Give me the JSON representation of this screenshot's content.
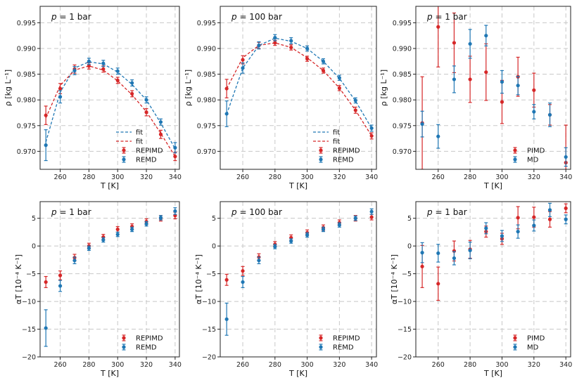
{
  "chart_data": [
    {
      "type": "scatter",
      "annotation": {
        "prefix": "p",
        "rest": " = 1 bar"
      },
      "xlabel": "T [K]",
      "ylabel": "ρ [kg L⁻¹]",
      "xlim": [
        246,
        343
      ],
      "ylim": [
        0.9665,
        0.9982
      ],
      "xticks": [
        260,
        280,
        300,
        320,
        340
      ],
      "yticks": [
        0.97,
        0.975,
        0.98,
        0.985,
        0.99,
        0.995
      ],
      "yticklabels": [
        "0.970",
        "0.975",
        "0.980",
        "0.985",
        "0.990",
        "0.995"
      ],
      "legend_position": "lower-right",
      "series": [
        {
          "name": "fit",
          "kind": "line",
          "color": "#1f77b4",
          "x": [
            250,
            260,
            270,
            280,
            290,
            300,
            310,
            320,
            330,
            340
          ],
          "y": [
            0.9718,
            0.9815,
            0.9862,
            0.9874,
            0.987,
            0.9854,
            0.983,
            0.98,
            0.9755,
            0.9705
          ]
        },
        {
          "name": "fit",
          "kind": "line",
          "color": "#d62728",
          "x": [
            250,
            260,
            270,
            280,
            290,
            300,
            310,
            320,
            330,
            340
          ],
          "y": [
            0.9765,
            0.9828,
            0.9858,
            0.9866,
            0.9858,
            0.9837,
            0.981,
            0.9777,
            0.9735,
            0.969
          ]
        },
        {
          "name": "REPIMD",
          "kind": "points",
          "color": "#d62728",
          "x": [
            250,
            260,
            270,
            280,
            290,
            300,
            310,
            320,
            330,
            340
          ],
          "y": [
            0.977,
            0.9822,
            0.986,
            0.9866,
            0.986,
            0.9838,
            0.9812,
            0.9776,
            0.9733,
            0.969
          ],
          "err": [
            0.0018,
            0.001,
            0.0008,
            0.0006,
            0.0006,
            0.0006,
            0.0006,
            0.0007,
            0.0008,
            0.0008
          ]
        },
        {
          "name": "REMD",
          "kind": "points",
          "color": "#1f77b4",
          "x": [
            250,
            260,
            270,
            280,
            290,
            300,
            310,
            320,
            330,
            340
          ],
          "y": [
            0.9712,
            0.9806,
            0.9857,
            0.9875,
            0.9871,
            0.9856,
            0.9833,
            0.98,
            0.9757,
            0.9707
          ],
          "err": [
            0.003,
            0.0012,
            0.0008,
            0.0006,
            0.0006,
            0.0006,
            0.0006,
            0.0006,
            0.0006,
            0.001
          ]
        }
      ]
    },
    {
      "type": "scatter",
      "annotation": {
        "prefix": "p",
        "rest": " = 100 bar"
      },
      "xlabel": "T [K]",
      "ylabel": "ρ [kg L⁻¹]",
      "xlim": [
        246,
        343
      ],
      "ylim": [
        0.9665,
        0.9982
      ],
      "xticks": [
        260,
        280,
        300,
        320,
        340
      ],
      "yticks": [
        0.97,
        0.975,
        0.98,
        0.985,
        0.99,
        0.995
      ],
      "yticklabels": [
        "0.970",
        "0.975",
        "0.980",
        "0.985",
        "0.990",
        "0.995"
      ],
      "legend_position": "lower-right",
      "series": [
        {
          "name": "fit",
          "kind": "line",
          "color": "#1f77b4",
          "x": [
            250,
            260,
            270,
            280,
            290,
            300,
            310,
            320,
            330,
            340
          ],
          "y": [
            0.9772,
            0.9862,
            0.9906,
            0.992,
            0.9914,
            0.99,
            0.9875,
            0.9842,
            0.9798,
            0.9745
          ]
        },
        {
          "name": "fit",
          "kind": "line",
          "color": "#d62728",
          "x": [
            250,
            260,
            270,
            280,
            290,
            300,
            310,
            320,
            330,
            340
          ],
          "y": [
            0.9822,
            0.9882,
            0.9906,
            0.9911,
            0.9902,
            0.9882,
            0.9857,
            0.9823,
            0.978,
            0.973
          ]
        },
        {
          "name": "REPIMD",
          "kind": "points",
          "color": "#d62728",
          "x": [
            250,
            260,
            270,
            280,
            290,
            300,
            310,
            320,
            330,
            340
          ],
          "y": [
            0.9822,
            0.9878,
            0.9906,
            0.9911,
            0.9902,
            0.988,
            0.9857,
            0.9823,
            0.978,
            0.973
          ],
          "err": [
            0.0018,
            0.0008,
            0.0006,
            0.0005,
            0.0005,
            0.0005,
            0.0005,
            0.0005,
            0.0006,
            0.0006
          ]
        },
        {
          "name": "REMD",
          "kind": "points",
          "color": "#1f77b4",
          "x": [
            250,
            260,
            270,
            280,
            290,
            300,
            310,
            320,
            330,
            340
          ],
          "y": [
            0.9773,
            0.9862,
            0.9906,
            0.9921,
            0.9915,
            0.99,
            0.9875,
            0.9843,
            0.9799,
            0.9745
          ],
          "err": [
            0.0025,
            0.001,
            0.0007,
            0.0006,
            0.0006,
            0.0005,
            0.0005,
            0.0005,
            0.0005,
            0.0006
          ]
        }
      ]
    },
    {
      "type": "scatter",
      "annotation": {
        "prefix": "p",
        "rest": " = 1 bar"
      },
      "xlabel": "T [K]",
      "ylabel": "ρ [kg L⁻¹]",
      "xlim": [
        246,
        343
      ],
      "ylim": [
        0.9665,
        0.9982
      ],
      "xticks": [
        260,
        280,
        300,
        320,
        340
      ],
      "yticks": [
        0.97,
        0.975,
        0.98,
        0.985,
        0.99,
        0.995
      ],
      "yticklabels": [
        "0.970",
        "0.975",
        "0.980",
        "0.985",
        "0.990",
        "0.995"
      ],
      "legend_position": "lower-right",
      "series": [
        {
          "name": "PIMD",
          "kind": "points",
          "color": "#d62728",
          "x": [
            250,
            260,
            270,
            280,
            290,
            300,
            310,
            320,
            330,
            340
          ],
          "y": [
            0.9755,
            0.9942,
            0.9911,
            0.984,
            0.9854,
            0.9796,
            0.9845,
            0.9819,
            0.9771,
            0.9678
          ],
          "err": [
            0.009,
            0.0078,
            0.0058,
            0.0045,
            0.0055,
            0.0042,
            0.0038,
            0.0033,
            0.002,
            0.0073
          ]
        },
        {
          "name": "MD",
          "kind": "points",
          "color": "#1f77b4",
          "x": [
            250,
            260,
            270,
            280,
            290,
            300,
            310,
            320,
            330,
            340
          ],
          "y": [
            0.9753,
            0.9729,
            0.984,
            0.9909,
            0.9925,
            0.9835,
            0.9828,
            0.9777,
            0.9771,
            0.9689
          ],
          "err": [
            0.0025,
            0.0023,
            0.0026,
            0.0028,
            0.002,
            0.0022,
            0.0018,
            0.0014,
            0.0023,
            0.0018
          ]
        }
      ]
    },
    {
      "type": "scatter",
      "annotation": {
        "prefix": "p",
        "rest": " = 1 bar"
      },
      "xlabel": "T [K]",
      "ylabel": "αT [10⁻⁴ K⁻¹]",
      "xlim": [
        246,
        343
      ],
      "ylim": [
        -20,
        8
      ],
      "xticks": [
        260,
        280,
        300,
        320,
        340
      ],
      "yticks": [
        -20,
        -15,
        -10,
        -5,
        0,
        5
      ],
      "yticklabels": [
        "−20",
        "−15",
        "−10",
        "−5",
        "0",
        "5"
      ],
      "legend_position": "lower-right",
      "series": [
        {
          "name": "REPIMD",
          "kind": "points",
          "color": "#d62728",
          "x": [
            250,
            260,
            270,
            280,
            290,
            300,
            310,
            320,
            330,
            340
          ],
          "y": [
            -6.5,
            -5.3,
            -2.1,
            0.0,
            1.6,
            3.0,
            3.5,
            4.4,
            5.0,
            5.5
          ],
          "err": [
            1.0,
            0.8,
            0.6,
            0.5,
            0.5,
            0.5,
            0.5,
            0.5,
            0.5,
            0.6
          ]
        },
        {
          "name": "REMD",
          "kind": "points",
          "color": "#1f77b4",
          "x": [
            250,
            260,
            270,
            280,
            290,
            300,
            310,
            320,
            330,
            340
          ],
          "y": [
            -14.8,
            -7.2,
            -2.6,
            -0.4,
            1.1,
            2.1,
            3.0,
            4.0,
            5.1,
            6.3
          ],
          "err": [
            3.3,
            1.0,
            0.6,
            0.4,
            0.4,
            0.4,
            0.4,
            0.4,
            0.4,
            0.6
          ]
        }
      ]
    },
    {
      "type": "scatter",
      "annotation": {
        "prefix": "p",
        "rest": " = 100 bar"
      },
      "xlabel": "T [K]",
      "ylabel": "αT [10⁻⁴ K⁻¹]",
      "xlim": [
        246,
        343
      ],
      "ylim": [
        -20,
        8
      ],
      "xticks": [
        260,
        280,
        300,
        320,
        340
      ],
      "yticks": [
        -20,
        -15,
        -10,
        -5,
        0,
        5
      ],
      "yticklabels": [
        "−20",
        "−15",
        "−10",
        "−5",
        "0",
        "5"
      ],
      "legend_position": "lower-right",
      "series": [
        {
          "name": "REPIMD",
          "kind": "points",
          "color": "#d62728",
          "x": [
            250,
            260,
            270,
            280,
            290,
            300,
            310,
            320,
            330,
            340
          ],
          "y": [
            -6.1,
            -4.5,
            -2.0,
            0.3,
            1.5,
            2.4,
            3.3,
            4.2,
            5.0,
            5.2
          ],
          "err": [
            1.0,
            0.8,
            0.6,
            0.5,
            0.5,
            0.5,
            0.5,
            0.5,
            0.5,
            0.5
          ]
        },
        {
          "name": "REMD",
          "kind": "points",
          "color": "#1f77b4",
          "x": [
            250,
            260,
            270,
            280,
            290,
            300,
            310,
            320,
            330,
            340
          ],
          "y": [
            -13.2,
            -6.5,
            -2.6,
            -0.1,
            0.9,
            2.0,
            3.0,
            3.8,
            5.0,
            6.2
          ],
          "err": [
            2.9,
            1.0,
            0.6,
            0.4,
            0.4,
            0.4,
            0.4,
            0.4,
            0.4,
            0.5
          ]
        }
      ]
    },
    {
      "type": "scatter",
      "annotation": {
        "prefix": "p",
        "rest": " = 1 bar"
      },
      "xlabel": "T [K]",
      "ylabel": "αT [10⁻⁴ K⁻¹]",
      "xlim": [
        246,
        343
      ],
      "ylim": [
        -20,
        8
      ],
      "xticks": [
        260,
        280,
        300,
        320,
        340
      ],
      "yticks": [
        -20,
        -15,
        -10,
        -5,
        0,
        5
      ],
      "yticklabels": [
        "−20",
        "−15",
        "−10",
        "−5",
        "0",
        "5"
      ],
      "legend_position": "lower-right",
      "series": [
        {
          "name": "PIMD",
          "kind": "points",
          "color": "#d62728",
          "x": [
            250,
            260,
            270,
            280,
            290,
            300,
            310,
            320,
            330,
            340
          ],
          "y": [
            -3.7,
            -6.8,
            -0.9,
            -0.6,
            2.6,
            1.3,
            5.1,
            5.2,
            4.8,
            6.8
          ],
          "err": [
            3.8,
            3.0,
            1.8,
            1.6,
            1.0,
            1.0,
            2.0,
            1.8,
            1.4,
            0.8
          ]
        },
        {
          "name": "MD",
          "kind": "points",
          "color": "#1f77b4",
          "x": [
            250,
            260,
            270,
            280,
            290,
            300,
            310,
            320,
            330,
            340
          ],
          "y": [
            -1.2,
            -1.3,
            -2.2,
            -0.8,
            3.2,
            1.8,
            2.6,
            3.7,
            6.5,
            4.8
          ],
          "err": [
            1.8,
            1.6,
            1.2,
            1.5,
            1.0,
            1.0,
            1.2,
            1.0,
            1.2,
            0.8
          ]
        }
      ]
    }
  ]
}
